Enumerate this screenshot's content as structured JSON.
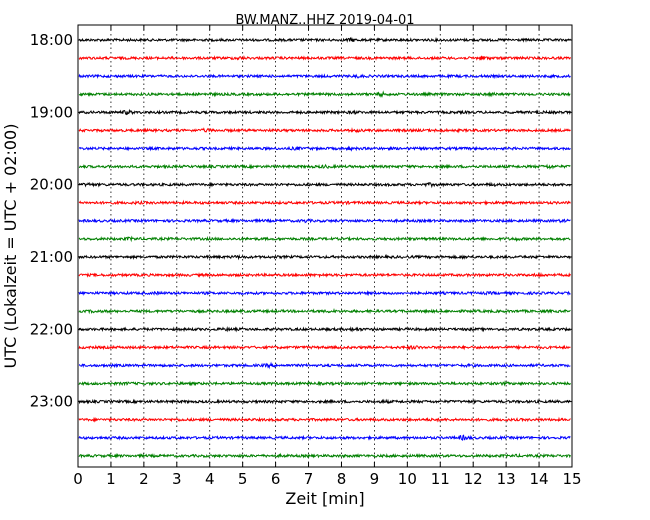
{
  "chart_data": {
    "type": "line",
    "title": "BW.MANZ..HHZ 2019-04-01",
    "xlabel": "Zeit  [min]",
    "ylabel": "UTC (Lokalzeit = UTC + 02:00)",
    "xlim": [
      0,
      15
    ],
    "x_ticks": [
      0,
      1,
      2,
      3,
      4,
      5,
      6,
      7,
      8,
      9,
      10,
      11,
      12,
      13,
      14,
      15
    ],
    "y_ticks": [
      "18:00",
      "19:00",
      "20:00",
      "21:00",
      "22:00",
      "23:00"
    ],
    "grid": "vertical dotted at each minute",
    "trace_interval_minutes": 15,
    "colors_cycle": [
      "#000000",
      "#ff0000",
      "#0000ff",
      "#008000"
    ],
    "series": [
      {
        "start": "18:00",
        "color": "#000000",
        "events": [
          {
            "t": 8.3,
            "amp": 1.8
          }
        ]
      },
      {
        "start": "18:15",
        "color": "#ff0000",
        "events": [
          {
            "t": 4.9,
            "amp": 1.6
          },
          {
            "t": 12.3,
            "amp": 2.0
          }
        ]
      },
      {
        "start": "18:30",
        "color": "#0000ff",
        "events": [
          {
            "t": 8.5,
            "amp": 1.5
          }
        ]
      },
      {
        "start": "18:45",
        "color": "#008000",
        "events": [
          {
            "t": 4.0,
            "amp": 1.4
          },
          {
            "t": 9.2,
            "amp": 2.0
          },
          {
            "t": 12.6,
            "amp": 1.5
          }
        ]
      },
      {
        "start": "19:00",
        "color": "#000000",
        "events": [
          {
            "t": 1.5,
            "amp": 2.0
          },
          {
            "t": 8.4,
            "amp": 1.5
          },
          {
            "t": 14.0,
            "amp": 1.3
          }
        ]
      },
      {
        "start": "19:15",
        "color": "#ff0000",
        "events": [
          {
            "t": 3.9,
            "amp": 1.7
          },
          {
            "t": 8.5,
            "amp": 1.4
          },
          {
            "t": 11.0,
            "amp": 1.5
          }
        ]
      },
      {
        "start": "19:30",
        "color": "#0000ff",
        "events": [
          {
            "t": 6.6,
            "amp": 1.5
          },
          {
            "t": 8.3,
            "amp": 1.4
          }
        ]
      },
      {
        "start": "19:45",
        "color": "#008000",
        "events": [
          {
            "t": 7.5,
            "amp": 1.6
          },
          {
            "t": 14.3,
            "amp": 1.8
          }
        ]
      },
      {
        "start": "20:00",
        "color": "#000000",
        "events": [
          {
            "t": 0.3,
            "amp": 1.6
          },
          {
            "t": 10.7,
            "amp": 1.6
          },
          {
            "t": 12.6,
            "amp": 1.4
          }
        ]
      },
      {
        "start": "20:15",
        "color": "#ff0000",
        "events": [
          {
            "t": 1.8,
            "amp": 1.3
          },
          {
            "t": 8.1,
            "amp": 1.3
          }
        ]
      },
      {
        "start": "20:30",
        "color": "#0000ff",
        "events": [
          {
            "t": 6.9,
            "amp": 1.6
          },
          {
            "t": 14.7,
            "amp": 1.4
          }
        ]
      },
      {
        "start": "20:45",
        "color": "#008000",
        "events": [
          {
            "t": 1.6,
            "amp": 1.6
          },
          {
            "t": 13.3,
            "amp": 1.4
          }
        ]
      },
      {
        "start": "21:00",
        "color": "#000000",
        "events": [
          {
            "t": 4.8,
            "amp": 1.4
          },
          {
            "t": 11.7,
            "amp": 1.3
          }
        ]
      },
      {
        "start": "21:15",
        "color": "#ff0000",
        "events": [
          {
            "t": 7.4,
            "amp": 1.3
          },
          {
            "t": 14.0,
            "amp": 1.5
          }
        ]
      },
      {
        "start": "21:30",
        "color": "#0000ff",
        "events": [
          {
            "t": 2.4,
            "amp": 1.3
          },
          {
            "t": 12.5,
            "amp": 1.3
          }
        ]
      },
      {
        "start": "21:45",
        "color": "#008000",
        "events": [
          {
            "t": 0.5,
            "amp": 1.4
          },
          {
            "t": 7.7,
            "amp": 1.4
          }
        ]
      },
      {
        "start": "22:00",
        "color": "#000000",
        "events": [
          {
            "t": 4.5,
            "amp": 1.4
          },
          {
            "t": 8.4,
            "amp": 1.7
          }
        ]
      },
      {
        "start": "22:15",
        "color": "#ff0000",
        "events": [
          {
            "t": 10.2,
            "amp": 1.8
          },
          {
            "t": 13.5,
            "amp": 1.3
          }
        ]
      },
      {
        "start": "22:30",
        "color": "#0000ff",
        "events": [
          {
            "t": 5.8,
            "amp": 1.8
          },
          {
            "t": 11.8,
            "amp": 1.3
          }
        ]
      },
      {
        "start": "22:45",
        "color": "#008000",
        "events": [
          {
            "t": 1.5,
            "amp": 1.3
          },
          {
            "t": 12.9,
            "amp": 1.3
          }
        ]
      },
      {
        "start": "23:00",
        "color": "#000000",
        "events": [
          {
            "t": 9.3,
            "amp": 1.4
          }
        ]
      },
      {
        "start": "23:15",
        "color": "#ff0000",
        "events": [
          {
            "t": 3.0,
            "amp": 1.3
          },
          {
            "t": 10.8,
            "amp": 1.3
          }
        ]
      },
      {
        "start": "23:30",
        "color": "#0000ff",
        "events": [
          {
            "t": 11.7,
            "amp": 2.2
          }
        ]
      },
      {
        "start": "23:45",
        "color": "#008000",
        "events": [
          {
            "t": 6.2,
            "amp": 1.3
          },
          {
            "t": 13.3,
            "amp": 1.3
          }
        ]
      }
    ]
  }
}
